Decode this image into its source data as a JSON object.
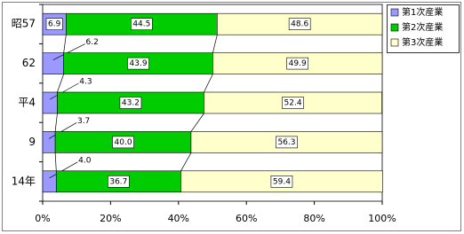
{
  "chart_data": {
    "type": "stacked-bar-horizontal",
    "categories": [
      "昭57",
      "62",
      "平4",
      "9",
      "14年"
    ],
    "series": [
      {
        "name": "第1次産業",
        "color": "#9999ff",
        "values": [
          6.9,
          6.2,
          4.3,
          3.7,
          4.0
        ],
        "value_labels": [
          "6.9",
          "6.2",
          "4.3",
          "3.7",
          "4.0"
        ]
      },
      {
        "name": "第2次産業",
        "color": "#00cc00",
        "values": [
          44.5,
          43.9,
          43.2,
          40.0,
          36.7
        ],
        "value_labels": [
          "44.5",
          "43.9",
          "43.2",
          "40.0",
          "36.7"
        ]
      },
      {
        "name": "第3次産業",
        "color": "#ffffcc",
        "values": [
          48.6,
          49.9,
          52.4,
          56.3,
          59.4
        ],
        "value_labels": [
          "48.6",
          "49.9",
          "52.4",
          "56.3",
          "59.4"
        ]
      }
    ],
    "xlim": [
      0,
      100
    ],
    "xticks": [
      {
        "value": 0,
        "label": "0%"
      },
      {
        "value": 20,
        "label": "20%"
      },
      {
        "value": 40,
        "label": "40%"
      },
      {
        "value": 60,
        "label": "60%"
      },
      {
        "value": 80,
        "label": "80%"
      },
      {
        "value": 100,
        "label": "100%"
      }
    ],
    "legend": "right"
  }
}
